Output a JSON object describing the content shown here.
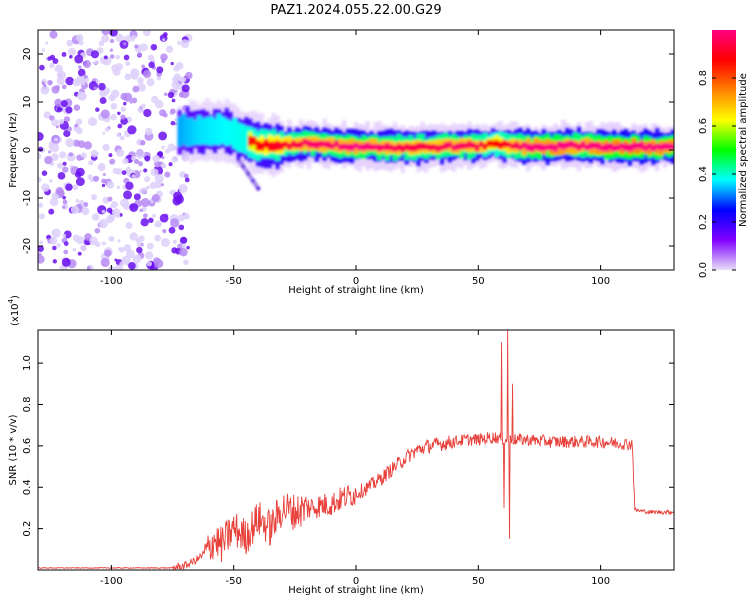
{
  "figure": {
    "title": "PAZ1.2024.055.22.00.G29"
  },
  "colorbar": {
    "label": "Normalized spectral amplitude",
    "ticks": [
      0.0,
      0.2,
      0.4,
      0.6,
      0.8
    ],
    "tick_labels": [
      "0.0",
      "0.2",
      "0.4",
      "0.6",
      "0.8"
    ],
    "colors": [
      "#e8e0f8",
      "#8000ff",
      "#0000ff",
      "#00ffff",
      "#00ff00",
      "#ffff00",
      "#ff8000",
      "#ff0000",
      "#ff0080"
    ]
  },
  "chart_data": [
    {
      "type": "heatmap",
      "title": "",
      "xlabel": "Height of straight line (km)",
      "ylabel": "Frequency (Hz)",
      "xlim": [
        -130,
        130
      ],
      "ylim": [
        -25,
        25
      ],
      "xticks": [
        -100,
        -50,
        0,
        50,
        100
      ],
      "xtick_labels": [
        "-100",
        "-50",
        "0",
        "50",
        "100"
      ],
      "yticks": [
        -20,
        -10,
        0,
        10,
        20
      ],
      "ytick_labels": [
        "-20",
        "-10",
        "0",
        "10",
        "20"
      ],
      "colorscale_range": [
        0,
        1
      ],
      "noise_region_x": [
        -130,
        -72
      ],
      "ridge": {
        "x": [
          -73,
          -65,
          -55,
          -45,
          -40,
          -30,
          -20,
          -10,
          0,
          10,
          20,
          30,
          40,
          50,
          55,
          60,
          70,
          80,
          90,
          100,
          110,
          120,
          130
        ],
        "y": [
          4,
          4,
          4,
          2,
          1,
          1,
          1.5,
          1,
          0.8,
          0.6,
          0.5,
          0.6,
          0.8,
          0.8,
          1.5,
          1,
          0.7,
          0.7,
          1,
          0.7,
          0.6,
          0.6,
          0.6
        ],
        "amplitude": [
          0.4,
          0.5,
          0.55,
          0.6,
          0.65,
          0.7,
          0.8,
          0.8,
          0.85,
          0.8,
          0.75,
          0.75,
          0.8,
          0.75,
          0.6,
          0.7,
          0.85,
          0.9,
          0.8,
          0.9,
          0.95,
          0.9,
          0.9
        ]
      },
      "branch": {
        "x": [
          -48,
          -40
        ],
        "y": [
          -2,
          -8
        ]
      }
    },
    {
      "type": "line",
      "title": "",
      "xlabel": "Height of straight line (km)",
      "ylabel": "SNR (10 * v/v)",
      "y_multiplier_label": "(x10",
      "y_multiplier_exponent": "4",
      "y_multiplier_close": ")",
      "xlim": [
        -130,
        130
      ],
      "ylim": [
        0,
        1.16
      ],
      "xticks": [
        -100,
        -50,
        0,
        50,
        100
      ],
      "xtick_labels": [
        "-100",
        "-50",
        "0",
        "50",
        "100"
      ],
      "yticks": [
        0.2,
        0.4,
        0.6,
        0.8,
        1.0
      ],
      "ytick_labels": [
        "0.2",
        "0.4",
        "0.6",
        "0.8",
        "1.0"
      ],
      "color": "#e8403a",
      "series": [
        {
          "x": [
            -130,
            -110,
            -90,
            -75,
            -70,
            -65,
            -60,
            -58,
            -55,
            -50,
            -45,
            -40,
            -35,
            -30,
            -25,
            -20,
            -15,
            -10,
            -5,
            0,
            5,
            10,
            15,
            20,
            25,
            30,
            35,
            40,
            45,
            50,
            55,
            58,
            60,
            62,
            63,
            65,
            70,
            80,
            90,
            100,
            110,
            113,
            114,
            120,
            130
          ],
          "y": [
            0.01,
            0.01,
            0.01,
            0.01,
            0.02,
            0.05,
            0.1,
            0.15,
            0.12,
            0.2,
            0.16,
            0.25,
            0.2,
            0.3,
            0.28,
            0.3,
            0.31,
            0.32,
            0.35,
            0.37,
            0.4,
            0.44,
            0.49,
            0.54,
            0.58,
            0.6,
            0.61,
            0.62,
            0.63,
            0.63,
            0.64,
            0.64,
            0.63,
            0.63,
            0.63,
            0.63,
            0.63,
            0.62,
            0.62,
            0.62,
            0.61,
            0.61,
            0.29,
            0.28,
            0.28
          ]
        }
      ],
      "spikes": [
        {
          "x": 59.5,
          "y": 1.1
        },
        {
          "x": 60.5,
          "y": 0.3
        },
        {
          "x": 62.0,
          "y": 1.16
        },
        {
          "x": 62.7,
          "y": 0.15
        },
        {
          "x": 64.0,
          "y": 0.9
        }
      ]
    }
  ]
}
